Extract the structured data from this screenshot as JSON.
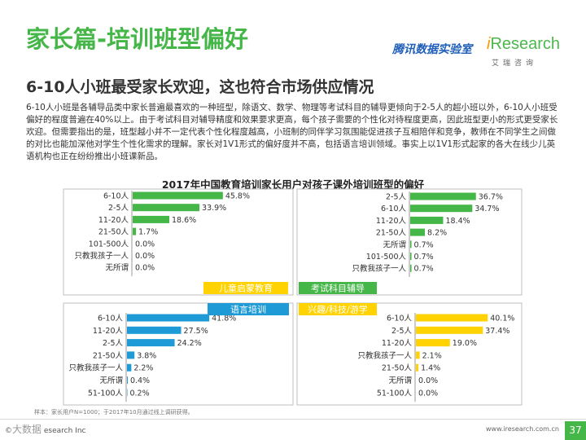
{
  "header": {
    "title": "家长篇-培训班型偏好",
    "subtitle": "6-10人小班最受家长欢迎，这也符合市场供应情况",
    "logo_tencent": "腾讯数据实验室",
    "logo_ir_i": "i",
    "logo_ir_rest": "Research",
    "logo_ir_sub": "艾瑞咨询"
  },
  "body": {
    "paragraph": "6-10人小班是各辅导品类中家长普遍最喜欢的一种班型，除语文、数学、物理等考试科目的辅导更倾向于2-5人的超小班以外，6-10人小班受偏好的程度普遍在40%以上。由于考试科目对辅导精度和效果要求更高，每个孩子需要的个性化对待程度更高，因此班型更小的形式更受家长欢迎。但需要指出的是，班型越小并不一定代表个性化程度越高，小班制的同伴学习氛围能促进孩子互相陪伴和竞争，教师在不同学生之间做的对比也能加深他对学生个性化需求的理解。家长对1V1形式的偏好度并不高，包括语言培训领域。事实上以1V1形式起家的各大在线少儿英语机构也正在纷纷推出小班课新品。"
  },
  "chart_data": {
    "type": "bar",
    "orientation": "horizontal",
    "title": "2017年中国教育培训家长用户对孩子课外培训班型的偏好",
    "unit": "%",
    "panels": [
      {
        "name": "儿童启蒙教育",
        "label_color": "#ffd200",
        "bar_color": "#45b648",
        "xlim": [
          0,
          100
        ],
        "categories": [
          "6-10人",
          "2-5人",
          "11-20人",
          "21-50人",
          "101-500人",
          "只教我孩子一人",
          "无所谓"
        ],
        "values": [
          45.8,
          33.9,
          18.6,
          1.7,
          0.0,
          0.0,
          0.0
        ]
      },
      {
        "name": "考试科目辅导",
        "label_color": "#45b648",
        "bar_color": "#45b648",
        "xlim": [
          0,
          100
        ],
        "categories": [
          "2-5人",
          "6-10人",
          "11-20人",
          "21-50人",
          "无所谓",
          "101-500人",
          "只教我孩子一人"
        ],
        "values": [
          36.7,
          34.7,
          18.4,
          8.2,
          0.7,
          0.7,
          0.7
        ]
      },
      {
        "name": "语言培训",
        "label_color": "#1e9ad6",
        "bar_color": "#1e9ad6",
        "xlim": [
          0,
          100
        ],
        "categories": [
          "6-10人",
          "11-20人",
          "2-5人",
          "21-50人",
          "只教我孩子一人",
          "无所谓",
          "51-100人"
        ],
        "values": [
          41.8,
          27.5,
          24.2,
          3.8,
          2.2,
          0.4,
          0.2
        ]
      },
      {
        "name": "兴趣/科技/游学",
        "label_color": "#ffd200",
        "bar_color": "#ffd200",
        "xlim": [
          0,
          100
        ],
        "categories": [
          "6-10人",
          "2-5人",
          "11-20人",
          "只教我孩子一人",
          "21-50人",
          "无所谓",
          "51-100人"
        ],
        "values": [
          40.1,
          37.4,
          19.0,
          2.1,
          1.4,
          0.0,
          0.0
        ]
      }
    ]
  },
  "footer": {
    "note": "样本：家长用户N=1000；于2017年10月通过线上调研获得。",
    "left_mark": "©",
    "left_watermark": "大数据",
    "left_text": "esearch Inc",
    "url": "www.iresearch.com.cn",
    "page": "37"
  }
}
